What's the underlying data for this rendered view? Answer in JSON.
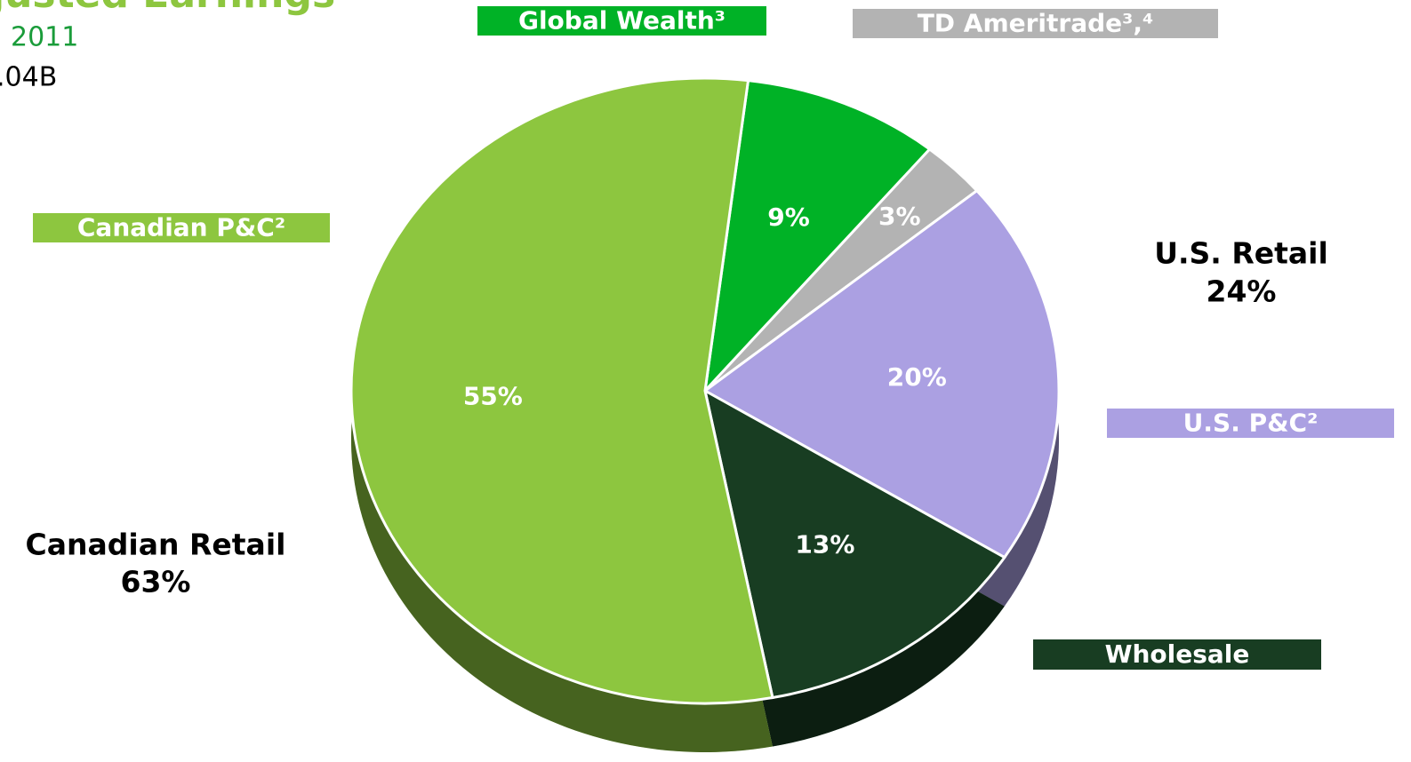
{
  "chart_data": {
    "type": "pie",
    "title": "justed Earnings",
    "subtitle": "2011",
    "annotations": [
      ".04B",
      "Canadian Retail",
      "63%",
      "U.S. Retail",
      "24%"
    ],
    "categories": [
      "Global Wealth³",
      "TD Ameritrade³,⁴",
      "U.S. P&C²",
      "Wholesale",
      "Canadian P&C²"
    ],
    "values": [
      9,
      3,
      20,
      13,
      55
    ],
    "value_labels": [
      "9%",
      "3%",
      "20%",
      "13%",
      "55%"
    ],
    "colors": [
      "#00b226",
      "#b3b3b3",
      "#aba0e2",
      "#183d22",
      "#8dc63f"
    ]
  }
}
